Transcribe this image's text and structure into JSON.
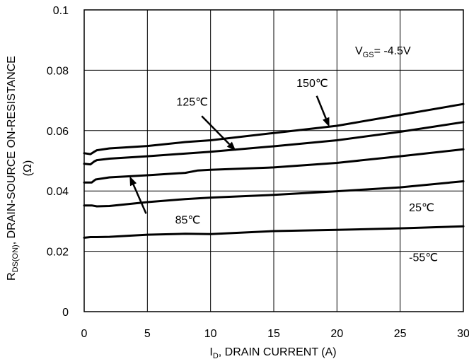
{
  "chart_data": {
    "type": "line",
    "xlabel": {
      "main": "I",
      "sub": "D",
      "rest": ", DRAIN CURRENT (A)"
    },
    "ylabel": {
      "pre": "R",
      "sub": "DS(ON)",
      "rest": ", DRAIN-SOURCE ON-RESISTANCE",
      "unit": "(Ω)"
    },
    "xlim": [
      0,
      30
    ],
    "ylim": [
      0,
      0.1
    ],
    "x_ticks": [
      0,
      5,
      10,
      15,
      20,
      25,
      30
    ],
    "x_tick_labels": [
      "0",
      "5",
      "10",
      "15",
      "20",
      "25",
      "30"
    ],
    "y_ticks": [
      0,
      0.02,
      0.04,
      0.06,
      0.08,
      0.1
    ],
    "y_tick_labels": [
      "0",
      "0.02",
      "0.04",
      "0.06",
      "0.08",
      "0.1"
    ],
    "grid": true,
    "condition": {
      "pre": "V",
      "sub": "GS",
      "rest": "= -4.5V"
    },
    "series": [
      {
        "name": "150℃",
        "points": [
          [
            0,
            0.0525
          ],
          [
            0.5,
            0.0522
          ],
          [
            0.8,
            0.053
          ],
          [
            1,
            0.0535
          ],
          [
            2,
            0.0541
          ],
          [
            5,
            0.0549
          ],
          [
            8,
            0.0562
          ],
          [
            10,
            0.0568
          ],
          [
            15,
            0.0592
          ],
          [
            20,
            0.0616
          ],
          [
            25,
            0.0652
          ],
          [
            30,
            0.0688
          ]
        ]
      },
      {
        "name": "125℃",
        "points": [
          [
            0,
            0.049
          ],
          [
            0.5,
            0.0488
          ],
          [
            0.8,
            0.0498
          ],
          [
            1,
            0.0502
          ],
          [
            2,
            0.0507
          ],
          [
            5,
            0.0515
          ],
          [
            10,
            0.053
          ],
          [
            15,
            0.0548
          ],
          [
            20,
            0.0568
          ],
          [
            25,
            0.0596
          ],
          [
            30,
            0.0628
          ]
        ]
      },
      {
        "name": "85℃",
        "points": [
          [
            0,
            0.0428
          ],
          [
            0.6,
            0.0428
          ],
          [
            0.9,
            0.0438
          ],
          [
            2,
            0.0445
          ],
          [
            5,
            0.0452
          ],
          [
            8,
            0.046
          ],
          [
            9,
            0.0468
          ],
          [
            10,
            0.047
          ],
          [
            15,
            0.0478
          ],
          [
            20,
            0.0493
          ],
          [
            25,
            0.0515
          ],
          [
            30,
            0.0538
          ]
        ]
      },
      {
        "name": "25℃",
        "points": [
          [
            0,
            0.0352
          ],
          [
            0.6,
            0.0352
          ],
          [
            1,
            0.0349
          ],
          [
            2,
            0.035
          ],
          [
            5,
            0.0363
          ],
          [
            8,
            0.0373
          ],
          [
            10,
            0.0378
          ],
          [
            15,
            0.0387
          ],
          [
            20,
            0.0399
          ],
          [
            25,
            0.0412
          ],
          [
            30,
            0.0432
          ]
        ]
      },
      {
        "name": "-55℃",
        "points": [
          [
            0,
            0.0245
          ],
          [
            0.5,
            0.0247
          ],
          [
            1,
            0.0247
          ],
          [
            2,
            0.0248
          ],
          [
            5,
            0.0255
          ],
          [
            8,
            0.0258
          ],
          [
            10,
            0.0257
          ],
          [
            15,
            0.0267
          ],
          [
            20,
            0.0271
          ],
          [
            25,
            0.0276
          ],
          [
            30,
            0.0283
          ]
        ]
      }
    ],
    "annotations": [
      {
        "label": "150℃",
        "text_at": [
          16.8,
          0.0745
        ],
        "arrow_from": [
          18.4,
          0.0715
        ],
        "arrow_to": [
          19.4,
          0.0612
        ]
      },
      {
        "label": "125℃",
        "text_at": [
          7.3,
          0.0683
        ],
        "arrow_from": [
          9.3,
          0.0648
        ],
        "arrow_to": [
          12.0,
          0.0533
        ]
      },
      {
        "label": "85℃",
        "text_at": [
          7.2,
          0.0292
        ],
        "arrow_from": [
          4.9,
          0.0325
        ],
        "arrow_to": [
          3.6,
          0.0449
        ]
      },
      {
        "label": "25℃",
        "text_at": [
          25.7,
          0.0332
        ],
        "arrow_from": null,
        "arrow_to": null
      },
      {
        "label": "-55℃",
        "text_at": [
          25.7,
          0.0168
        ],
        "arrow_from": null,
        "arrow_to": null
      }
    ]
  }
}
